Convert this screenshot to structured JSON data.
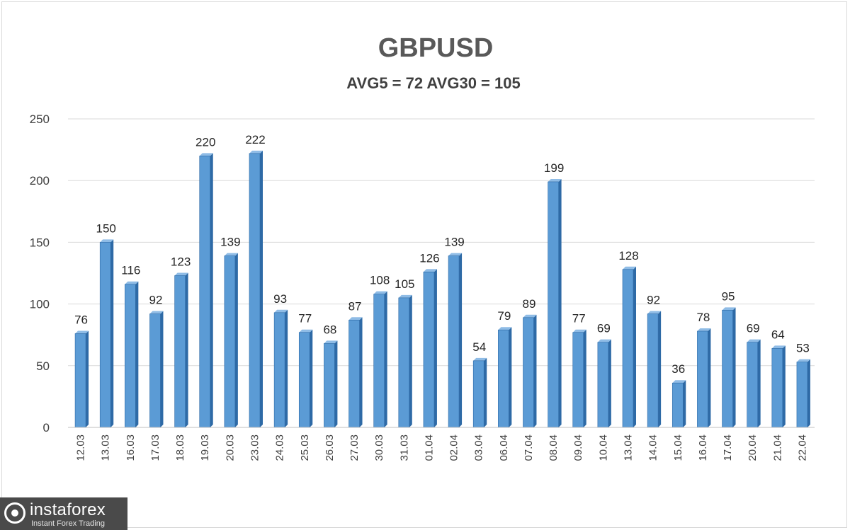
{
  "chart_data": {
    "type": "bar",
    "title": "GBPUSD",
    "subtitle": "AVG5 = 72 AVG30 = 105",
    "xlabel": "",
    "ylabel": "",
    "ylim": [
      0,
      250
    ],
    "yticks": [
      0,
      50,
      100,
      150,
      200,
      250
    ],
    "grid": true,
    "categories": [
      "12.03",
      "13.03",
      "16.03",
      "17.03",
      "18.03",
      "19.03",
      "20.03",
      "23.03",
      "24.03",
      "25.03",
      "26.03",
      "27.03",
      "30.03",
      "31.03",
      "01.04",
      "02.04",
      "03.04",
      "06.04",
      "07.04",
      "08.04",
      "09.04",
      "10.04",
      "13.04",
      "14.04",
      "15.04",
      "16.04",
      "17.04",
      "20.04",
      "21.04",
      "22.04"
    ],
    "values": [
      76,
      150,
      116,
      92,
      123,
      220,
      139,
      222,
      93,
      77,
      68,
      87,
      108,
      105,
      126,
      139,
      54,
      79,
      89,
      199,
      77,
      69,
      128,
      92,
      36,
      78,
      95,
      69,
      64,
      53
    ],
    "bar_color": "#5b9bd5",
    "bar_side_color": "#2e6aa6"
  },
  "watermark": {
    "name": "instaforex",
    "tagline": "Instant Forex Trading"
  }
}
